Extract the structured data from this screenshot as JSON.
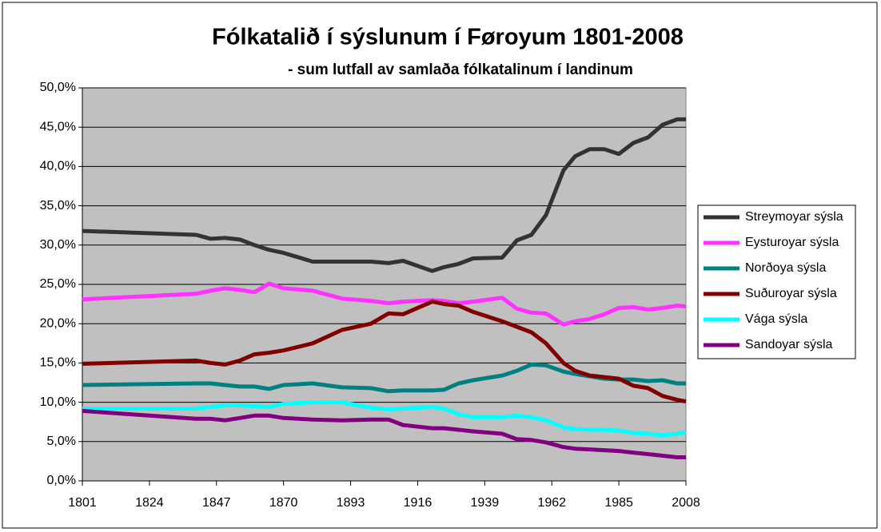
{
  "chart_data": {
    "type": "line",
    "title": "Fólkatalið í sýslunum í Føroyum 1801-2008",
    "subtitle": "- sum lutfall av samlaða fólkatalinum í landinum",
    "x": [
      1801,
      1840,
      1845,
      1850,
      1855,
      1860,
      1865,
      1870,
      1880,
      1890,
      1900,
      1906,
      1911,
      1921,
      1925,
      1930,
      1935,
      1945,
      1950,
      1955,
      1960,
      1966,
      1970,
      1975,
      1980,
      1985,
      1990,
      1995,
      2000,
      2005,
      2008
    ],
    "xlim": [
      1801,
      2008
    ],
    "xticks": [
      1801,
      1824,
      1847,
      1870,
      1893,
      1916,
      1939,
      1962,
      1985,
      2008
    ],
    "ylim": [
      0,
      50
    ],
    "yticks": [
      {
        "value": 0,
        "label": "0,0%"
      },
      {
        "value": 5,
        "label": "5,0%"
      },
      {
        "value": 10,
        "label": "10,0%"
      },
      {
        "value": 15,
        "label": "15,0%"
      },
      {
        "value": 20,
        "label": "20,0%"
      },
      {
        "value": 25,
        "label": "25,0%"
      },
      {
        "value": 30,
        "label": "30,0%"
      },
      {
        "value": 35,
        "label": "35,0%"
      },
      {
        "value": 40,
        "label": "40,0%"
      },
      {
        "value": 45,
        "label": "45,0%"
      },
      {
        "value": 50,
        "label": "50,0%"
      }
    ],
    "grid": true,
    "legend": "right",
    "series": [
      {
        "name": "Streymoyar sýsla",
        "color": "#333333",
        "values": [
          31.8,
          31.3,
          30.8,
          30.9,
          30.7,
          30.0,
          29.4,
          29.0,
          27.9,
          27.9,
          27.9,
          27.7,
          28.0,
          26.7,
          27.2,
          27.6,
          28.3,
          28.4,
          30.6,
          31.3,
          33.8,
          39.5,
          41.3,
          42.2,
          42.2,
          41.6,
          43.0,
          43.7,
          45.3,
          46.0,
          46.0
        ]
      },
      {
        "name": "Eysturoyar sýsla",
        "color": "#ff33ff",
        "values": [
          23.1,
          23.8,
          24.2,
          24.5,
          24.3,
          24.0,
          25.1,
          24.5,
          24.2,
          23.2,
          22.9,
          22.6,
          22.8,
          23.0,
          22.9,
          22.6,
          22.8,
          23.3,
          21.9,
          21.4,
          21.3,
          19.9,
          20.3,
          20.6,
          21.2,
          22.0,
          22.1,
          21.8,
          22.0,
          22.3,
          22.2
        ]
      },
      {
        "name": "Norðoya sýsla",
        "color": "#008080",
        "values": [
          12.2,
          12.4,
          12.4,
          12.2,
          12.0,
          12.0,
          11.7,
          12.2,
          12.4,
          11.9,
          11.8,
          11.4,
          11.5,
          11.5,
          11.6,
          12.4,
          12.8,
          13.4,
          14.0,
          14.8,
          14.7,
          13.9,
          13.6,
          13.3,
          13.0,
          12.9,
          12.9,
          12.7,
          12.8,
          12.4,
          12.4
        ]
      },
      {
        "name": "Suðuroyar sýsla",
        "color": "#800000",
        "values": [
          14.9,
          15.3,
          15.0,
          14.8,
          15.3,
          16.1,
          16.3,
          16.6,
          17.5,
          19.2,
          20.0,
          21.3,
          21.2,
          22.8,
          22.5,
          22.3,
          21.5,
          20.3,
          19.6,
          18.9,
          17.5,
          15.0,
          14.0,
          13.4,
          13.2,
          13.0,
          12.1,
          11.8,
          10.8,
          10.3,
          10.1
        ]
      },
      {
        "name": "Vága sýsla",
        "color": "#00ffff",
        "values": [
          9.2,
          9.2,
          9.4,
          9.6,
          9.6,
          9.5,
          9.4,
          9.8,
          10.0,
          10.0,
          9.3,
          9.1,
          9.2,
          9.4,
          9.2,
          8.5,
          8.1,
          8.1,
          8.3,
          8.1,
          7.7,
          6.8,
          6.6,
          6.5,
          6.5,
          6.4,
          6.1,
          6.0,
          5.8,
          6.0,
          6.2
        ]
      },
      {
        "name": "Sandoyar sýsla",
        "color": "#800080",
        "values": [
          8.9,
          7.9,
          7.9,
          7.7,
          8.0,
          8.3,
          8.3,
          8.0,
          7.8,
          7.7,
          7.8,
          7.8,
          7.1,
          6.7,
          6.7,
          6.5,
          6.3,
          6.0,
          5.3,
          5.2,
          4.9,
          4.3,
          4.1,
          4.0,
          3.9,
          3.8,
          3.6,
          3.4,
          3.2,
          3.0,
          3.0
        ]
      }
    ]
  }
}
